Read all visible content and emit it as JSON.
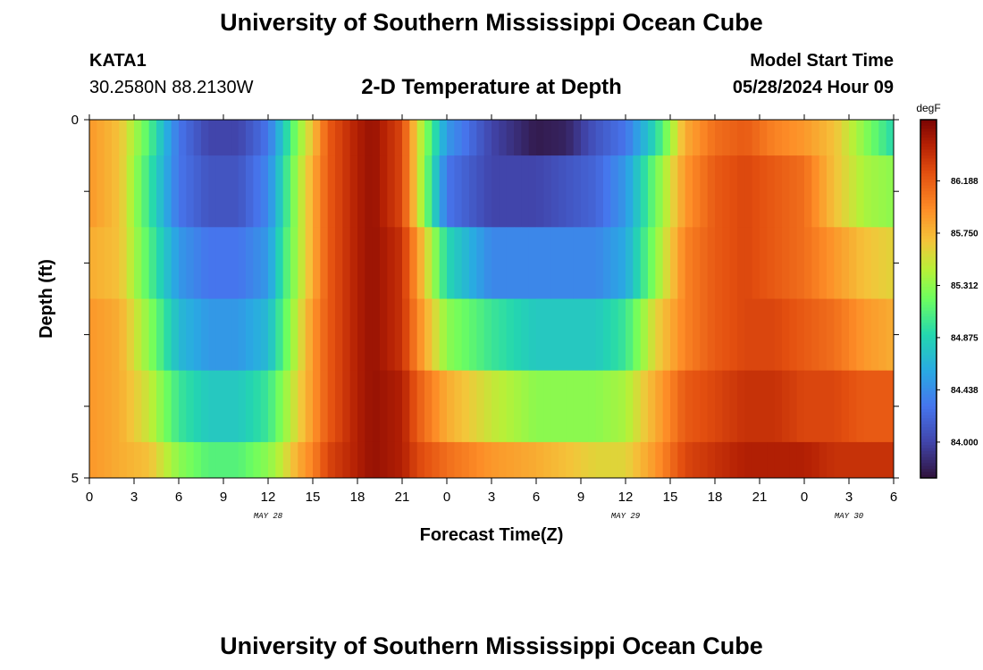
{
  "header": {
    "title": "University of Southern Mississippi Ocean Cube",
    "station": "KATA1",
    "coords": "30.2580N  88.2130W",
    "subtitle": "2-D Temperature at Depth",
    "model_label": "Model Start Time",
    "model_time": "05/28/2024 Hour 09"
  },
  "footer": {
    "title": "University of Southern Mississippi Ocean Cube"
  },
  "chart_data": {
    "type": "heatmap",
    "xlabel": "Forecast Time(Z)",
    "ylabel": "Depth (ft)",
    "x_hours": [
      0,
      54
    ],
    "x_tick_labels": [
      "0",
      "3",
      "6",
      "9",
      "12",
      "15",
      "18",
      "21",
      "0",
      "3",
      "6",
      "9",
      "12",
      "15",
      "18",
      "21",
      "0",
      "3",
      "6"
    ],
    "date_labels": [
      {
        "label": "MAY 28",
        "hour": 12
      },
      {
        "label": "MAY 29",
        "hour": 36
      },
      {
        "label": "MAY 30",
        "hour": 51
      }
    ],
    "ylim": [
      0,
      5
    ],
    "y_tick_labels": [
      {
        "label": "0",
        "value": 0
      },
      {
        "label": "5",
        "value": 5
      }
    ],
    "depth_layers": [
      0.5,
      1.5,
      2.5,
      3.5,
      4.5
    ],
    "colorbar": {
      "unit": "degF",
      "range": [
        83.7,
        86.7
      ],
      "tick_labels": [
        "86.188",
        "85.750",
        "85.312",
        "84.875",
        "84.438",
        "84.000"
      ],
      "tick_values": [
        86.188,
        85.75,
        85.312,
        84.875,
        84.438,
        84.0
      ]
    },
    "series": [
      {
        "depth": 0.25,
        "hours": [
          0,
          2,
          4,
          6,
          8,
          10,
          12,
          13,
          14,
          15,
          16,
          18,
          19,
          21,
          22,
          24,
          27,
          30,
          32,
          34,
          36,
          38,
          40,
          42,
          44,
          46,
          48,
          50,
          52,
          54
        ],
        "values": [
          85.9,
          85.7,
          85.1,
          84.3,
          84.0,
          84.0,
          84.3,
          84.8,
          85.3,
          85.7,
          86.2,
          86.5,
          86.6,
          86.3,
          85.6,
          84.5,
          84.0,
          83.75,
          83.8,
          84.1,
          84.3,
          84.9,
          85.8,
          86.1,
          86.2,
          86.0,
          85.9,
          85.7,
          85.3,
          84.9
        ]
      },
      {
        "depth": 1,
        "hours": [
          0,
          2,
          4,
          6,
          8,
          10,
          12,
          13,
          14,
          15,
          16,
          18,
          19,
          21,
          22,
          24,
          27,
          30,
          32,
          34,
          36,
          38,
          40,
          42,
          44,
          46,
          48,
          50,
          52,
          54
        ],
        "values": [
          85.9,
          85.7,
          85.0,
          84.3,
          84.1,
          84.1,
          84.4,
          84.9,
          85.4,
          85.8,
          86.2,
          86.5,
          86.6,
          86.3,
          85.6,
          84.3,
          84.0,
          84.0,
          84.1,
          84.2,
          84.5,
          85.2,
          85.9,
          86.2,
          86.3,
          86.2,
          86.1,
          85.7,
          85.4,
          85.3
        ]
      },
      {
        "depth": 2,
        "hours": [
          0,
          2,
          4,
          6,
          8,
          10,
          12,
          13,
          14,
          15,
          16,
          18,
          19,
          21,
          22,
          24,
          27,
          30,
          32,
          34,
          36,
          38,
          40,
          42,
          44,
          46,
          48,
          50,
          52,
          54
        ],
        "values": [
          85.8,
          85.7,
          85.1,
          84.5,
          84.3,
          84.3,
          84.5,
          85.0,
          85.4,
          85.8,
          86.2,
          86.5,
          86.6,
          86.4,
          85.9,
          84.9,
          84.4,
          84.4,
          84.4,
          84.4,
          84.6,
          85.3,
          86.0,
          86.2,
          86.3,
          86.2,
          86.1,
          85.9,
          85.7,
          85.6
        ]
      },
      {
        "depth": 3,
        "hours": [
          0,
          2,
          4,
          6,
          8,
          10,
          12,
          13,
          14,
          15,
          16,
          18,
          19,
          21,
          22,
          24,
          27,
          30,
          32,
          34,
          36,
          38,
          40,
          42,
          44,
          46,
          48,
          50,
          52,
          54
        ],
        "values": [
          85.9,
          85.8,
          85.3,
          84.7,
          84.5,
          84.5,
          84.7,
          85.1,
          85.5,
          85.9,
          86.2,
          86.5,
          86.6,
          86.4,
          86.0,
          85.3,
          85.0,
          84.8,
          84.8,
          84.8,
          85.0,
          85.6,
          86.0,
          86.2,
          86.3,
          86.3,
          86.2,
          86.1,
          85.9,
          85.8
        ]
      },
      {
        "depth": 4,
        "hours": [
          0,
          2,
          4,
          6,
          8,
          10,
          12,
          13,
          14,
          15,
          16,
          18,
          19,
          21,
          22,
          24,
          27,
          30,
          32,
          34,
          36,
          38,
          40,
          42,
          44,
          46,
          48,
          50,
          52,
          54
        ],
        "values": [
          85.9,
          85.8,
          85.5,
          85.0,
          84.8,
          84.8,
          85.0,
          85.3,
          85.6,
          85.9,
          86.2,
          86.5,
          86.6,
          86.5,
          86.2,
          85.8,
          85.5,
          85.3,
          85.3,
          85.3,
          85.4,
          85.8,
          86.2,
          86.3,
          86.4,
          86.4,
          86.3,
          86.3,
          86.2,
          86.2
        ]
      },
      {
        "depth": 5,
        "hours": [
          0,
          2,
          4,
          6,
          8,
          10,
          12,
          13,
          14,
          15,
          16,
          18,
          19,
          21,
          22,
          24,
          27,
          30,
          32,
          34,
          36,
          38,
          40,
          42,
          44,
          46,
          48,
          50,
          52,
          54
        ],
        "values": [
          85.9,
          85.8,
          85.7,
          85.3,
          85.1,
          85.1,
          85.3,
          85.5,
          85.8,
          86.0,
          86.3,
          86.5,
          86.6,
          86.5,
          86.3,
          86.1,
          85.9,
          85.8,
          85.7,
          85.6,
          85.6,
          85.9,
          86.3,
          86.4,
          86.5,
          86.5,
          86.5,
          86.4,
          86.4,
          86.4
        ]
      }
    ]
  }
}
